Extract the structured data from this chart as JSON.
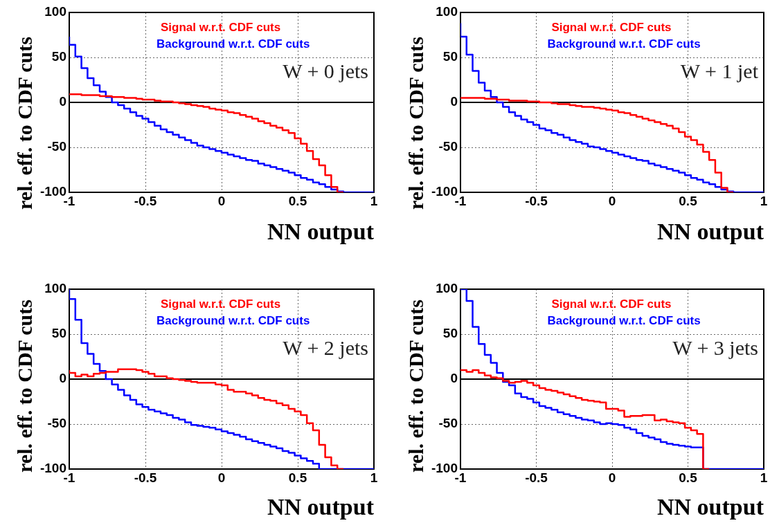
{
  "chart_data": [
    {
      "type": "step",
      "xlabel": "NN output",
      "ylabel": "rel. eff. to CDF cuts",
      "annotations": [
        "W + 0 jets"
      ],
      "x": [
        -1,
        -0.96,
        -0.92,
        -0.88,
        -0.84,
        -0.8,
        -0.76,
        -0.72,
        -0.68,
        -0.64,
        -0.6,
        -0.56,
        -0.52,
        -0.48,
        -0.44,
        -0.4,
        -0.36,
        -0.32,
        -0.28,
        -0.24,
        -0.2,
        -0.16,
        -0.12,
        -0.08,
        -0.04,
        0,
        0.04,
        0.08,
        0.12,
        0.16,
        0.2,
        0.24,
        0.28,
        0.32,
        0.36,
        0.4,
        0.44,
        0.48,
        0.52,
        0.56,
        0.6,
        0.64,
        0.68,
        0.72,
        0.76,
        0.8,
        0.84,
        0.88,
        0.92,
        0.96,
        1
      ],
      "series": [
        {
          "name": "Signal w.r.t. CDF cuts",
          "color": "#ff0000",
          "values": [
            9,
            9,
            9,
            8,
            8,
            8,
            7,
            7,
            6,
            6,
            5,
            5,
            4,
            3,
            3,
            2,
            1,
            1,
            0,
            -1,
            -2,
            -3,
            -4,
            -5,
            -7,
            -8,
            -9,
            -11,
            -12,
            -14,
            -16,
            -18,
            -21,
            -23,
            -26,
            -28,
            -31,
            -34,
            -40,
            -46,
            -54,
            -63,
            -70,
            -81,
            -94,
            -100,
            null,
            null,
            null,
            null,
            null
          ]
        },
        {
          "name": "Background w.r.t. CDF cuts",
          "color": "#0000ff",
          "values": [
            73,
            64,
            51,
            38,
            27,
            19,
            12,
            6,
            0,
            -3,
            -7,
            -11,
            -15,
            -18,
            -22,
            -26,
            -30,
            -33,
            -36,
            -39,
            -42,
            -45,
            -48,
            -50,
            -52,
            -54,
            -56,
            -58,
            -60,
            -62,
            -64,
            -65,
            -68,
            -70,
            -72,
            -74,
            -76,
            -78,
            -81,
            -84,
            -86,
            -89,
            -91,
            -94,
            -97,
            -99,
            -100,
            -100,
            -100,
            -100,
            -100
          ]
        }
      ],
      "xlim": [
        -1,
        1
      ],
      "ylim": [
        -100,
        100
      ],
      "xticks": [
        -1,
        -0.5,
        0,
        0.5,
        1
      ],
      "yticks": [
        -100,
        -50,
        0,
        50,
        100
      ],
      "ref_lines": [
        {
          "axis": "y",
          "value": 0
        }
      ],
      "grid": true,
      "legend": "top",
      "marker": "none"
    },
    {
      "type": "step",
      "xlabel": "NN output",
      "ylabel": "rel. eff. to CDF cuts",
      "annotations": [
        "W + 1 jet"
      ],
      "x": [
        -1,
        -0.96,
        -0.92,
        -0.88,
        -0.84,
        -0.8,
        -0.76,
        -0.72,
        -0.68,
        -0.64,
        -0.6,
        -0.56,
        -0.52,
        -0.48,
        -0.44,
        -0.4,
        -0.36,
        -0.32,
        -0.28,
        -0.24,
        -0.2,
        -0.16,
        -0.12,
        -0.08,
        -0.04,
        0,
        0.04,
        0.08,
        0.12,
        0.16,
        0.2,
        0.24,
        0.28,
        0.32,
        0.36,
        0.4,
        0.44,
        0.48,
        0.52,
        0.56,
        0.6,
        0.64,
        0.68,
        0.72,
        0.76,
        0.8,
        0.84,
        0.88,
        0.92,
        0.96,
        1
      ],
      "series": [
        {
          "name": "Signal w.r.t. CDF cuts",
          "color": "#ff0000",
          "values": [
            5,
            5,
            5,
            5,
            5,
            4,
            4,
            3,
            3,
            2,
            2,
            2,
            1,
            1,
            0,
            0,
            -1,
            -2,
            -2,
            -3,
            -4,
            -5,
            -5,
            -6,
            -7,
            -8,
            -9,
            -11,
            -12,
            -14,
            -16,
            -18,
            -20,
            -22,
            -24,
            -26,
            -29,
            -33,
            -38,
            -42,
            -47,
            -55,
            -64,
            -78,
            -95,
            -100,
            null,
            null,
            null,
            null,
            null
          ]
        },
        {
          "name": "Background w.r.t. CDF cuts",
          "color": "#0000ff",
          "values": [
            88,
            73,
            53,
            35,
            22,
            13,
            6,
            0,
            -5,
            -11,
            -15,
            -19,
            -22,
            -25,
            -29,
            -31,
            -34,
            -36,
            -39,
            -42,
            -44,
            -46,
            -49,
            -50,
            -52,
            -54,
            -56,
            -58,
            -60,
            -62,
            -64,
            -65,
            -68,
            -70,
            -72,
            -74,
            -76,
            -78,
            -81,
            -84,
            -86,
            -89,
            -91,
            -94,
            -97,
            -99,
            -100,
            -100,
            -100,
            -100,
            -100
          ]
        }
      ],
      "xlim": [
        -1,
        1
      ],
      "ylim": [
        -100,
        100
      ],
      "xticks": [
        -1,
        -0.5,
        0,
        0.5,
        1
      ],
      "yticks": [
        -100,
        -50,
        0,
        50,
        100
      ],
      "ref_lines": [
        {
          "axis": "y",
          "value": 0
        }
      ],
      "grid": true,
      "legend": "top",
      "marker": "none"
    },
    {
      "type": "step",
      "xlabel": "NN output",
      "ylabel": "rel. eff. to CDF cuts",
      "annotations": [
        "W + 2 jets"
      ],
      "x": [
        -1,
        -0.96,
        -0.92,
        -0.88,
        -0.84,
        -0.8,
        -0.76,
        -0.72,
        -0.68,
        -0.64,
        -0.6,
        -0.56,
        -0.52,
        -0.48,
        -0.44,
        -0.4,
        -0.36,
        -0.32,
        -0.28,
        -0.24,
        -0.2,
        -0.16,
        -0.12,
        -0.08,
        -0.04,
        0,
        0.04,
        0.08,
        0.12,
        0.16,
        0.2,
        0.24,
        0.28,
        0.32,
        0.36,
        0.4,
        0.44,
        0.48,
        0.52,
        0.56,
        0.6,
        0.64,
        0.68,
        0.72,
        0.76,
        0.8,
        0.84,
        0.88,
        0.92,
        0.96,
        1
      ],
      "series": [
        {
          "name": "Signal w.r.t. CDF cuts",
          "color": "#ff0000",
          "values": [
            10,
            7,
            3,
            5,
            3,
            6,
            7,
            8,
            8,
            11,
            11,
            11,
            10,
            8,
            6,
            3,
            3,
            1,
            0,
            -1,
            -2,
            -3,
            -4,
            -4,
            -4,
            -6,
            -7,
            -12,
            -14,
            -14,
            -16,
            -18,
            -21,
            -23,
            -24,
            -27,
            -29,
            -33,
            -36,
            -40,
            -49,
            -57,
            -73,
            -87,
            -96,
            -100,
            null,
            null,
            null,
            null,
            null
          ]
        },
        {
          "name": "Background w.r.t. CDF cuts",
          "color": "#0000ff",
          "values": [
            100,
            89,
            66,
            40,
            28,
            17,
            9,
            0,
            -6,
            -12,
            -18,
            -23,
            -28,
            -31,
            -34,
            -36,
            -38,
            -40,
            -43,
            -45,
            -48,
            -51,
            -52,
            -53,
            -54,
            -56,
            -58,
            -60,
            -62,
            -64,
            -67,
            -69,
            -71,
            -73,
            -75,
            -77,
            -80,
            -82,
            -85,
            -88,
            -91,
            -94,
            -100,
            -100,
            -100,
            -100,
            -100,
            -100,
            -100,
            -100,
            -100
          ]
        }
      ],
      "xlim": [
        -1,
        1
      ],
      "ylim": [
        -100,
        100
      ],
      "xticks": [
        -1,
        -0.5,
        0,
        0.5,
        1
      ],
      "yticks": [
        -100,
        -50,
        0,
        50,
        100
      ],
      "ref_lines": [
        {
          "axis": "y",
          "value": 0
        }
      ],
      "grid": true,
      "legend": "top",
      "marker": "none"
    },
    {
      "type": "step",
      "xlabel": "NN output",
      "ylabel": "rel. eff. to CDF cuts",
      "annotations": [
        "W + 3 jets"
      ],
      "x": [
        -1,
        -0.96,
        -0.92,
        -0.88,
        -0.84,
        -0.8,
        -0.76,
        -0.72,
        -0.68,
        -0.64,
        -0.6,
        -0.56,
        -0.52,
        -0.48,
        -0.44,
        -0.4,
        -0.36,
        -0.32,
        -0.28,
        -0.24,
        -0.2,
        -0.16,
        -0.12,
        -0.08,
        -0.04,
        0,
        0.04,
        0.08,
        0.12,
        0.16,
        0.2,
        0.24,
        0.28,
        0.32,
        0.36,
        0.4,
        0.44,
        0.48,
        0.52,
        0.56,
        0.6,
        0.64,
        0.68,
        0.72,
        0.76,
        0.8,
        0.84,
        0.88,
        0.92,
        0.96,
        1
      ],
      "series": [
        {
          "name": "Signal w.r.t. CDF cuts",
          "color": "#ff0000",
          "values": [
            9,
            10,
            8,
            10,
            7,
            4,
            2,
            1,
            -2,
            -4,
            -3,
            -2,
            -4,
            -7,
            -10,
            -12,
            -13,
            -15,
            -17,
            -19,
            -21,
            -23,
            -24,
            -25,
            -26,
            -33,
            -33,
            -35,
            -42,
            -41,
            -41,
            -40,
            -40,
            -46,
            -45,
            -47,
            -48,
            -49,
            -54,
            -57,
            -61,
            -100,
            null,
            null,
            null,
            null,
            null,
            null,
            null,
            null,
            null
          ]
        },
        {
          "name": "Background w.r.t. CDF cuts",
          "color": "#0000ff",
          "values": [
            100,
            100,
            87,
            58,
            39,
            27,
            18,
            7,
            -3,
            -7,
            -16,
            -20,
            -22,
            -26,
            -30,
            -32,
            -34,
            -37,
            -39,
            -41,
            -43,
            -45,
            -46,
            -48,
            -50,
            -49,
            -50,
            -51,
            -54,
            -56,
            -60,
            -63,
            -65,
            -67,
            -70,
            -72,
            -73,
            -74,
            -75,
            -76,
            -76,
            -100,
            -100,
            -100,
            -100,
            -100,
            -100,
            -100,
            -100,
            -100,
            -100
          ]
        }
      ],
      "xlim": [
        -1,
        1
      ],
      "ylim": [
        -100,
        100
      ],
      "xticks": [
        -1,
        -0.5,
        0,
        0.5,
        1
      ],
      "yticks": [
        -100,
        -50,
        0,
        50,
        100
      ],
      "ref_lines": [
        {
          "axis": "y",
          "value": 0
        }
      ],
      "grid": true,
      "legend": "top",
      "marker": "none"
    }
  ]
}
